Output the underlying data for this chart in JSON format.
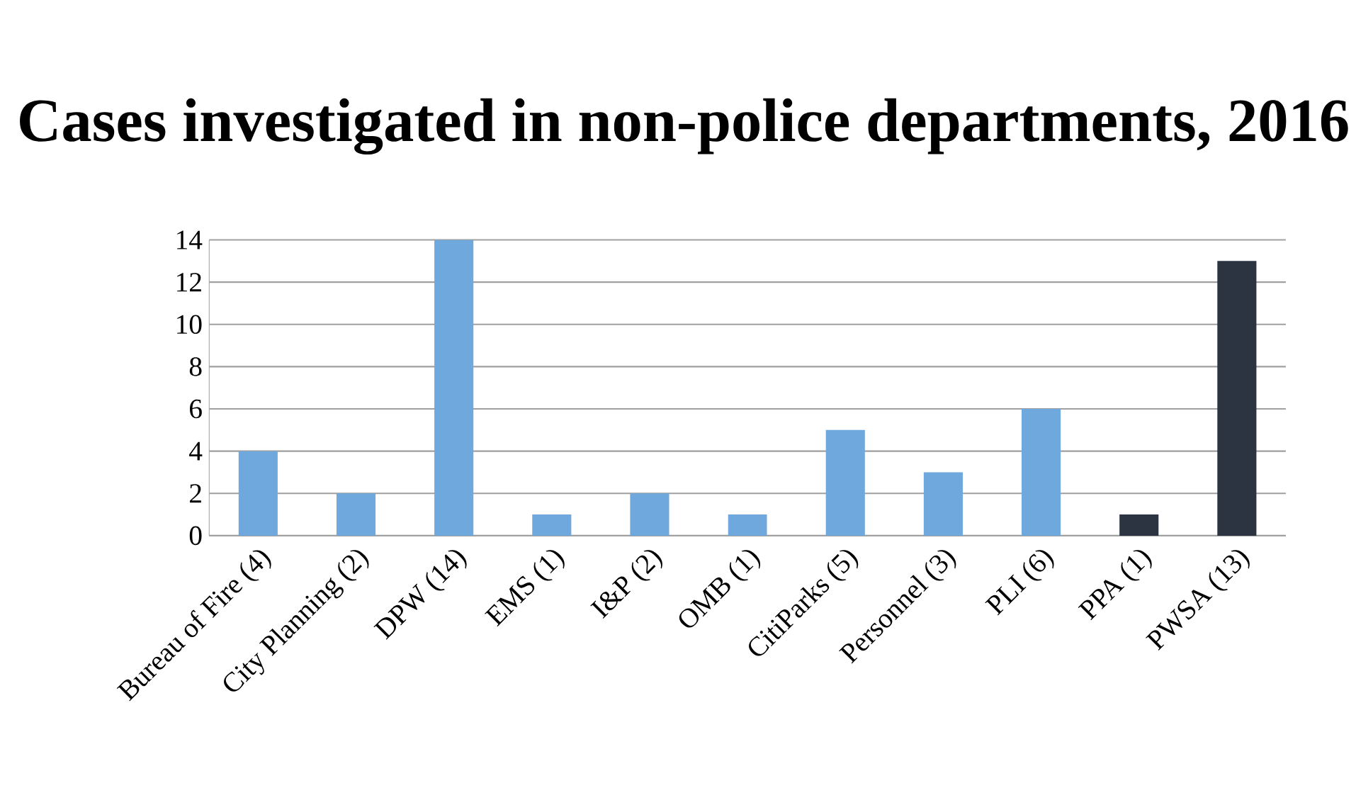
{
  "chart_data": {
    "type": "bar",
    "title": "Cases investigated in non-police departments, 2016",
    "categories": [
      "Bureau of Fire (4)",
      "City Planning (2)",
      "DPW (14)",
      "EMS (1)",
      "I&P (2)",
      "OMB (1)",
      "CitiParks (5)",
      "Personnel (3)",
      "PLI (6)",
      "PPA (1)",
      "PWSA (13)"
    ],
    "values": [
      4,
      2,
      14,
      1,
      2,
      1,
      5,
      3,
      6,
      1,
      13
    ],
    "colors": [
      "#6fa8dc",
      "#6fa8dc",
      "#6fa8dc",
      "#6fa8dc",
      "#6fa8dc",
      "#6fa8dc",
      "#6fa8dc",
      "#6fa8dc",
      "#6fa8dc",
      "#2b3440",
      "#2b3440"
    ],
    "ylim": [
      0,
      14
    ],
    "yticks": [
      0,
      2,
      4,
      6,
      8,
      10,
      12,
      14
    ],
    "grid": "y"
  }
}
